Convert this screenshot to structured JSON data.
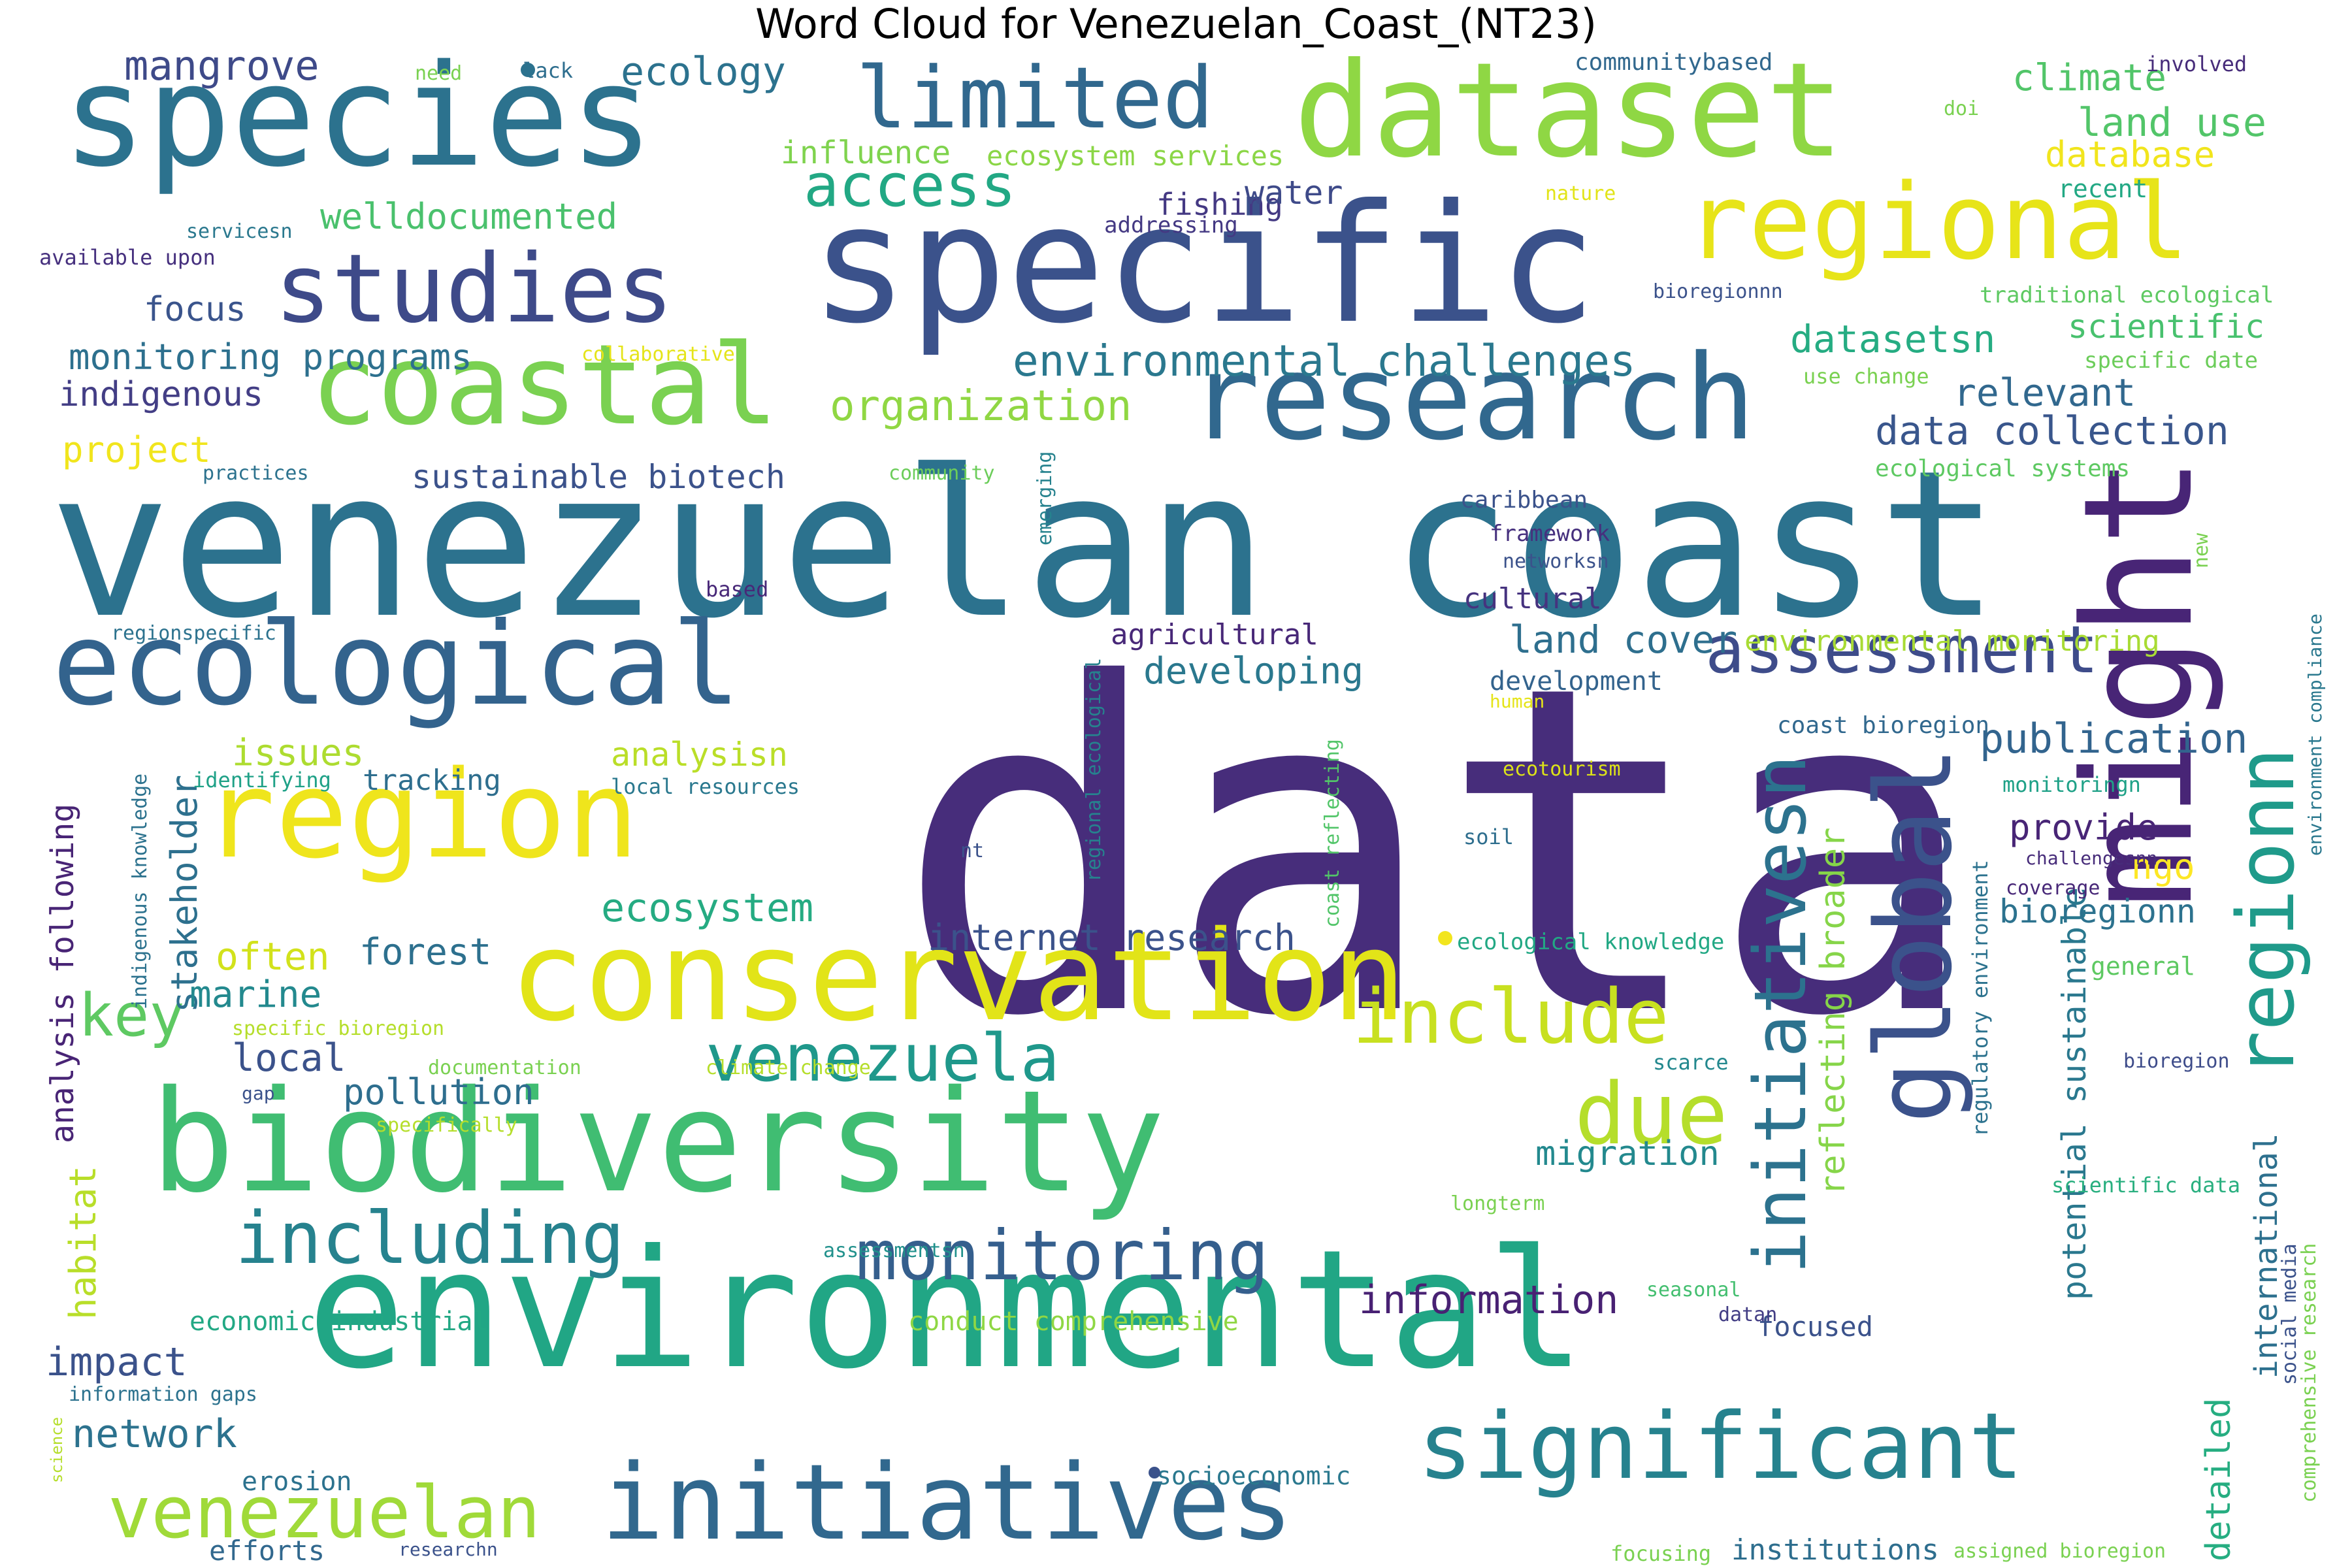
{
  "title": "Word Cloud for Venezuelan_Coast_(NT23)",
  "palette": {
    "dark_purple": "#472d7b",
    "indigo": "#3b528b",
    "steel_blue": "#2c728e",
    "teal": "#21918c",
    "green_teal": "#28ae80",
    "green": "#5ec962",
    "lime": "#addc30",
    "yellow": "#f2e51d"
  },
  "words": [
    {
      "text": "data",
      "color": "#472d7b"
    },
    {
      "text": "venezuelan coast",
      "color": "#2c728e"
    },
    {
      "text": "environmental",
      "color": "#21a685"
    },
    {
      "text": "specific",
      "color": "#3b528b"
    },
    {
      "text": "biodiversity",
      "color": "#40bd72"
    },
    {
      "text": "species",
      "color": "#2c728e"
    },
    {
      "text": "dataset",
      "color": "#8fd744"
    },
    {
      "text": "conservation",
      "color": "#e2e418"
    },
    {
      "text": "research",
      "color": "#31688e"
    },
    {
      "text": "might",
      "color": "#482576"
    },
    {
      "text": "ecological",
      "color": "#33638d"
    },
    {
      "text": "region",
      "color": "#efe51c"
    },
    {
      "text": "initiatives",
      "color": "#31688e"
    },
    {
      "text": "coastal",
      "color": "#7ad151"
    },
    {
      "text": "global",
      "color": "#3b528b"
    },
    {
      "text": "significant",
      "color": "#26828e"
    },
    {
      "text": "studies",
      "color": "#3e4a89"
    },
    {
      "text": "regional",
      "color": "#e7e419"
    },
    {
      "text": "limited",
      "color": "#31688e"
    },
    {
      "text": "venezuelan",
      "color": "#a0da39"
    },
    {
      "text": "regionn",
      "color": "#1f9a8a"
    },
    {
      "text": "initiativesn",
      "color": "#2c728e"
    },
    {
      "text": "including",
      "color": "#26828e"
    },
    {
      "text": "monitoring",
      "color": "#355f8d"
    },
    {
      "text": "venezuela",
      "color": "#1f988b"
    },
    {
      "text": "due",
      "color": "#b5de2b"
    },
    {
      "text": "include",
      "color": "#c8e020"
    },
    {
      "text": "assessment",
      "color": "#3e4c8a"
    },
    {
      "text": "access",
      "color": "#22a884"
    },
    {
      "text": "key",
      "color": "#5ec962"
    },
    {
      "text": "environmental challenges",
      "color": "#2a788e"
    },
    {
      "text": "organization",
      "color": "#90d743"
    },
    {
      "text": "information",
      "color": "#482173"
    },
    {
      "text": "internet research",
      "color": "#3b528b"
    },
    {
      "text": "publication",
      "color": "#32648e"
    },
    {
      "text": "ecosystem",
      "color": "#25ab82"
    },
    {
      "text": "reflecting broader",
      "color": "#86d549"
    },
    {
      "text": "potential sustainable",
      "color": "#2a788e"
    },
    {
      "text": "data collection",
      "color": "#39568c"
    },
    {
      "text": "relevant",
      "color": "#31688e"
    },
    {
      "text": "datasetsn",
      "color": "#25ac82"
    },
    {
      "text": "land use",
      "color": "#52c569"
    },
    {
      "text": "climate",
      "color": "#52c569"
    },
    {
      "text": "database",
      "color": "#f1e51d"
    },
    {
      "text": "mangrove",
      "color": "#3e4a89"
    },
    {
      "text": "ecology",
      "color": "#2c728e"
    },
    {
      "text": "influence",
      "color": "#7fd34e"
    },
    {
      "text": "ecosystem services",
      "color": "#8bd646"
    },
    {
      "text": "welldocumented",
      "color": "#4ac16d"
    },
    {
      "text": "fishing",
      "color": "#443983"
    },
    {
      "text": "water",
      "color": "#3e4a89"
    },
    {
      "text": "focus",
      "color": "#3a548c"
    },
    {
      "text": "monitoring programs",
      "color": "#2d708e"
    },
    {
      "text": "indigenous",
      "color": "#433e85"
    },
    {
      "text": "project",
      "color": "#f1e51d"
    },
    {
      "text": "sustainable biotech",
      "color": "#3b528b"
    },
    {
      "text": "scientific",
      "color": "#48c16e"
    },
    {
      "text": "developing",
      "color": "#2a788e"
    },
    {
      "text": "land cover",
      "color": "#2e6f8e"
    },
    {
      "text": "environmental monitoring",
      "color": "#a8db34"
    },
    {
      "text": "agricultural",
      "color": "#482878"
    },
    {
      "text": "cultural",
      "color": "#46337f"
    },
    {
      "text": "development",
      "color": "#33638d"
    },
    {
      "text": "issues",
      "color": "#addc30"
    },
    {
      "text": "analysisn",
      "color": "#bade28"
    },
    {
      "text": "tracking",
      "color": "#2e6e8e"
    },
    {
      "text": "stakeholder",
      "color": "#2d708e"
    },
    {
      "text": "analysis following",
      "color": "#482475"
    },
    {
      "text": "habitat",
      "color": "#b8de29"
    },
    {
      "text": "often",
      "color": "#d2e21b"
    },
    {
      "text": "forest",
      "color": "#2d708e"
    },
    {
      "text": "marine",
      "color": "#23898e"
    },
    {
      "text": "local",
      "color": "#3b528b"
    },
    {
      "text": "pollution",
      "color": "#2e6e8e"
    },
    {
      "text": "provide",
      "color": "#482576"
    },
    {
      "text": "ngo",
      "color": "#fde725"
    },
    {
      "text": "bioregionn",
      "color": "#2c728e"
    },
    {
      "text": "migration",
      "color": "#23898e"
    },
    {
      "text": "impact",
      "color": "#3b528b"
    },
    {
      "text": "network",
      "color": "#2c728e"
    },
    {
      "text": "focused",
      "color": "#3b528b"
    },
    {
      "text": "international",
      "color": "#2d708e"
    },
    {
      "text": "detailed",
      "color": "#26ad81"
    },
    {
      "text": "institutions",
      "color": "#2e6e8e"
    },
    {
      "text": "efforts",
      "color": "#31688e"
    },
    {
      "text": "erosion",
      "color": "#2c728e"
    },
    {
      "text": "economic industrial",
      "color": "#22a884"
    },
    {
      "text": "conduct comprehensive",
      "color": "#8fd744"
    },
    {
      "text": "climate change",
      "color": "#b5de2b"
    },
    {
      "text": "documentation",
      "color": "#7ad151"
    },
    {
      "text": "specific bioregion",
      "color": "#b5de2b"
    },
    {
      "text": "specifically",
      "color": "#b5de2b"
    },
    {
      "text": "socioeconomic",
      "color": "#2a788e"
    },
    {
      "text": "assessmentsn",
      "color": "#21918c"
    },
    {
      "text": "seasonal",
      "color": "#44bf70"
    },
    {
      "text": "datan",
      "color": "#433e85"
    },
    {
      "text": "scarce",
      "color": "#23888e"
    },
    {
      "text": "longterm",
      "color": "#7ad151"
    },
    {
      "text": "scientific data",
      "color": "#29af7f"
    },
    {
      "text": "bioregion",
      "color": "#3e4c8a"
    },
    {
      "text": "general",
      "color": "#5ec962"
    },
    {
      "text": "coverage",
      "color": "#482878"
    },
    {
      "text": "challengesnn",
      "color": "#472c7a"
    },
    {
      "text": "monitoringn",
      "color": "#1fa187"
    },
    {
      "text": "coast bioregion",
      "color": "#31688e"
    },
    {
      "text": "ecological knowledge",
      "color": "#22a884"
    },
    {
      "text": "ecotourism",
      "color": "#dde318"
    },
    {
      "text": "soil",
      "color": "#2e6e8e"
    },
    {
      "text": "human",
      "color": "#e5e419"
    },
    {
      "text": "nt",
      "color": "#3b528b"
    },
    {
      "text": "local resources",
      "color": "#2a788e"
    },
    {
      "text": "identifying",
      "color": "#1fa187"
    },
    {
      "text": "regional ecological",
      "color": "#26828e"
    },
    {
      "text": "coast reflecting",
      "color": "#52c569"
    },
    {
      "text": "indigenous knowledge",
      "color": "#2c728e"
    },
    {
      "text": "regionspecific",
      "color": "#2c728e"
    },
    {
      "text": "based",
      "color": "#482878"
    },
    {
      "text": "networksn",
      "color": "#3b528b"
    },
    {
      "text": "framework",
      "color": "#46307e"
    },
    {
      "text": "caribbean",
      "color": "#3b528b"
    },
    {
      "text": "emerging",
      "color": "#26828e"
    },
    {
      "text": "community",
      "color": "#6ccd5a"
    },
    {
      "text": "practices",
      "color": "#2c728e"
    },
    {
      "text": "collaborative",
      "color": "#e5e419"
    },
    {
      "text": "use change",
      "color": "#7ad151"
    },
    {
      "text": "specific date",
      "color": "#6ccd5a"
    },
    {
      "text": "ecological systems",
      "color": "#5ec962"
    },
    {
      "text": "new",
      "color": "#7ad151"
    },
    {
      "text": "environment compliance",
      "color": "#2a788e"
    },
    {
      "text": "regulatory environment",
      "color": "#2c728e"
    },
    {
      "text": "social media",
      "color": "#3b528b"
    },
    {
      "text": "comprehensive research",
      "color": "#7ad151"
    },
    {
      "text": "traditional ecological",
      "color": "#5ec962"
    },
    {
      "text": "bioregionnn",
      "color": "#3b528b"
    },
    {
      "text": "recent",
      "color": "#22a884"
    },
    {
      "text": "involved",
      "color": "#472c7a"
    },
    {
      "text": "doi",
      "color": "#7ad151"
    },
    {
      "text": "communitybased",
      "color": "#31688e"
    },
    {
      "text": "nature",
      "color": "#e2e418"
    },
    {
      "text": "addressing",
      "color": "#443983"
    },
    {
      "text": "servicesn",
      "color": "#2a788e"
    },
    {
      "text": "available upon",
      "color": "#46307e"
    },
    {
      "text": "need",
      "color": "#7ad151"
    },
    {
      "text": "lack",
      "color": "#2e6e8e"
    },
    {
      "text": "information gaps",
      "color": "#2c728e"
    },
    {
      "text": "science",
      "color": "#b5de2b"
    },
    {
      "text": "gap",
      "color": "#3b528b"
    },
    {
      "text": "researchn",
      "color": "#3b528b"
    },
    {
      "text": "focusing",
      "color": "#7ad151"
    },
    {
      "text": "assigned bioregion",
      "color": "#7ad151"
    }
  ]
}
